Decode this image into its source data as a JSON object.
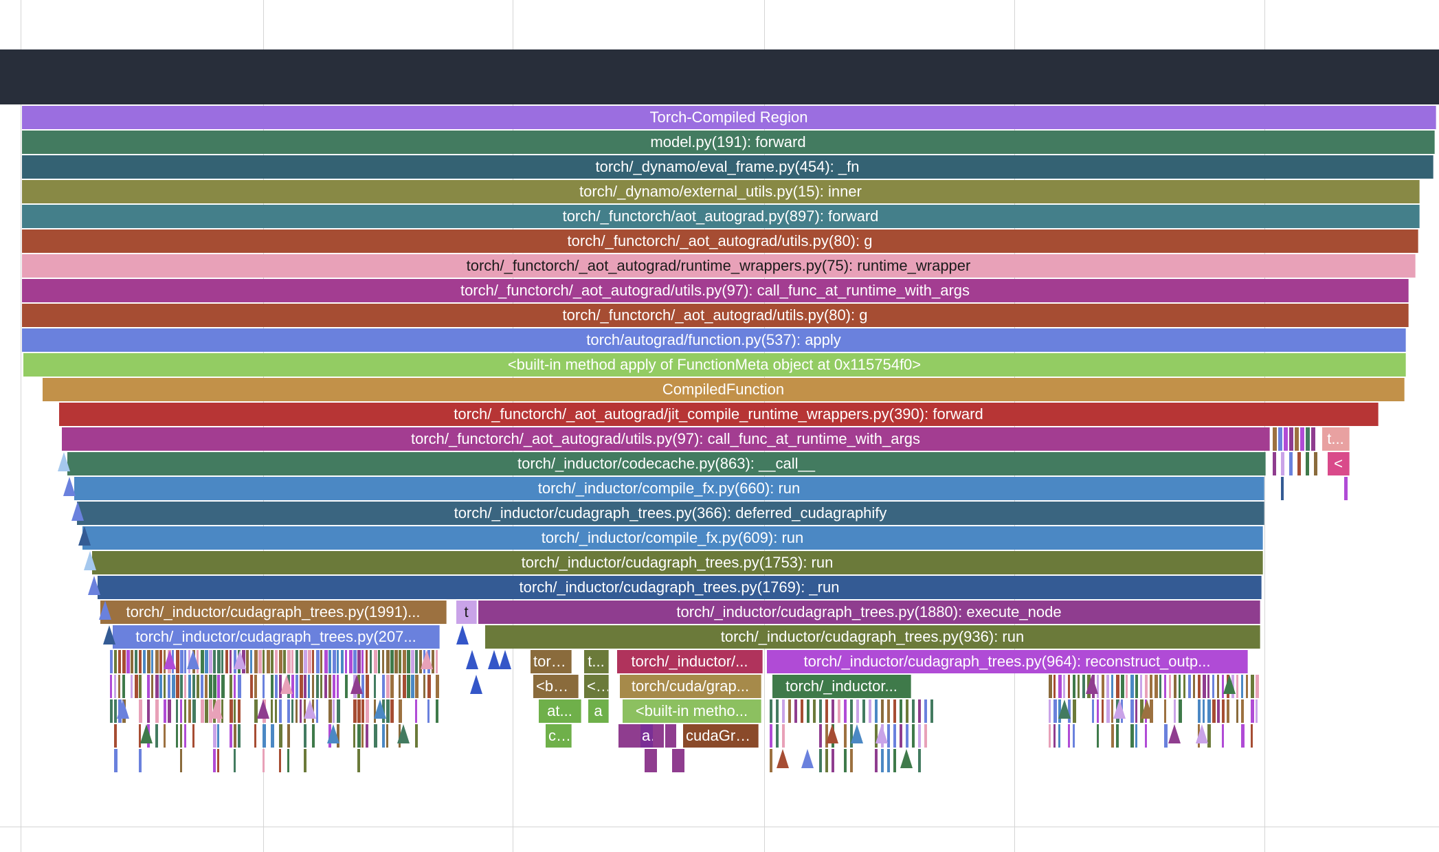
{
  "view": {
    "type": "flame-graph",
    "background": "#ffffff",
    "band_color": "#282e3a"
  },
  "frames": [
    {
      "label": "Torch-Compiled Region",
      "color": "#9b6ee0"
    },
    {
      "label": "model.py(191): forward",
      "color": "#437b60"
    },
    {
      "label": "torch/_dynamo/eval_frame.py(454): _fn",
      "color": "#346273"
    },
    {
      "label": "torch/_dynamo/external_utils.py(15): inner",
      "color": "#888945"
    },
    {
      "label": "torch/_functorch/aot_autograd.py(897): forward",
      "color": "#447f8a"
    },
    {
      "label": "torch/_functorch/_aot_autograd/utils.py(80): g",
      "color": "#a64d33"
    },
    {
      "label": "torch/_functorch/_aot_autograd/runtime_wrappers.py(75): runtime_wrapper",
      "color": "#e8a1b8"
    },
    {
      "label": "torch/_functorch/_aot_autograd/utils.py(97): call_func_at_runtime_with_args",
      "color": "#a33d91"
    },
    {
      "label": "torch/_functorch/_aot_autograd/utils.py(80): g",
      "color": "#a64d33"
    },
    {
      "label": "torch/autograd/function.py(537): apply",
      "color": "#6a81dd"
    },
    {
      "label": "<built-in method apply of FunctionMeta object at 0x115754f0>",
      "color": "#93cc63"
    },
    {
      "label": "CompiledFunction",
      "color": "#c29149"
    },
    {
      "label": "torch/_functorch/_aot_autograd/jit_compile_runtime_wrappers.py(390): forward",
      "color": "#b73535"
    },
    {
      "label": "torch/_functorch/_aot_autograd/utils.py(97): call_func_at_runtime_with_args",
      "color": "#a33d91"
    },
    {
      "label": "torch/_inductor/codecache.py(863): __call__",
      "color": "#437b60"
    },
    {
      "label": "torch/_inductor/compile_fx.py(660): run",
      "color": "#4b88c4"
    },
    {
      "label": "torch/_inductor/cudagraph_trees.py(366): deferred_cudagraphify",
      "color": "#3a6580"
    },
    {
      "label": "torch/_inductor/compile_fx.py(609): run",
      "color": "#4b88c4"
    },
    {
      "label": "torch/_inductor/cudagraph_trees.py(1753): run",
      "color": "#6b7a3a"
    },
    {
      "label": "torch/_inductor/cudagraph_trees.py(1769): _run",
      "color": "#345b94"
    },
    {
      "label": "torch/_inductor/cudagraph_trees.py(1991)...",
      "color": "#9c7140"
    },
    {
      "label": "t",
      "color": "#c9a3e8"
    },
    {
      "label": "torch/_inductor/cudagraph_trees.py(1880): execute_node",
      "color": "#8f3d8f"
    },
    {
      "label": "torch/_inductor/cudagraph_trees.py(207...",
      "color": "#6a81dd"
    },
    {
      "label": "torch/_inductor/cudagraph_trees.py(936): run",
      "color": "#6b7a3a"
    },
    {
      "label": "torc...",
      "color": "#8a6b3c"
    },
    {
      "label": "t...",
      "color": "#6b7a3a"
    },
    {
      "label": "torch/_inductor/...",
      "color": "#b0335c"
    },
    {
      "label": "torch/_inductor/cudagraph_trees.py(964): reconstruct_outp...",
      "color": "#b04bd6"
    },
    {
      "label": "<bui...",
      "color": "#8a6b3c"
    },
    {
      "label": "<...",
      "color": "#6b7a3a"
    },
    {
      "label": "torch/cuda/grap...",
      "color": "#a68a4a"
    },
    {
      "label": "torch/_inductor...",
      "color": "#3f7a4a"
    },
    {
      "label": "at...",
      "color": "#6fb04a"
    },
    {
      "label": "a",
      "color": "#6fb04a"
    },
    {
      "label": "<built-in metho...",
      "color": "#8cc060"
    },
    {
      "label": "c...",
      "color": "#6fb04a"
    },
    {
      "label": "a...",
      "color": "#7a2f96"
    },
    {
      "label": "cudaGra...",
      "color": "#8a4a2a"
    },
    {
      "label": "t...",
      "color": "#e8a1a1"
    },
    {
      "label": "<",
      "color": "#d94a8a"
    }
  ]
}
